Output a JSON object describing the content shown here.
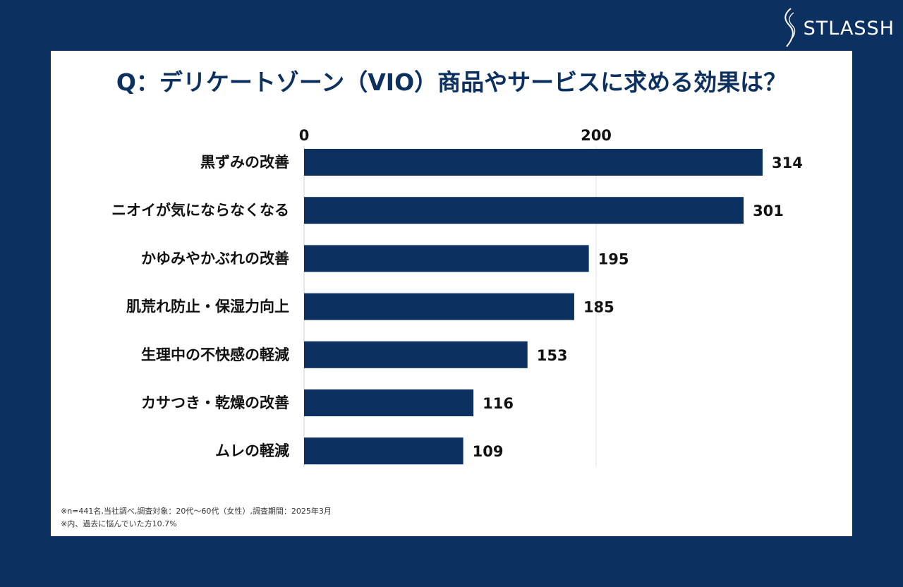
{
  "brand": {
    "name": "STLASSH",
    "logo_icon": "swirl-logo-icon"
  },
  "colors": {
    "background": "#0c3161",
    "bar": "#0c3161",
    "grid": "#dde2ea",
    "text": "#111111"
  },
  "chart_data": {
    "type": "bar",
    "orientation": "horizontal",
    "title": "Q：デリケートゾーン（VIO）商品やサービスに求める効果は？",
    "categories": [
      "黒ずみの改善",
      "ニオイが気にならなくなる",
      "かゆみやかぶれの改善",
      "肌荒れ防止・保湿力向上",
      "生理中の不快感の軽減",
      "カサつき・乾燥の改善",
      "ムレの軽減"
    ],
    "values": [
      314,
      301,
      195,
      185,
      153,
      116,
      109
    ],
    "x_ticks": [
      0,
      200
    ],
    "xlim": [
      0,
      330
    ],
    "axis_position": "top",
    "grid": true,
    "data_labels": true
  },
  "notes": [
    "※n=441名,当社調べ,調査対象：20代〜60代（女性）,調査期間：2025年3月",
    "※内、過去に悩んでいた方10.7%"
  ]
}
